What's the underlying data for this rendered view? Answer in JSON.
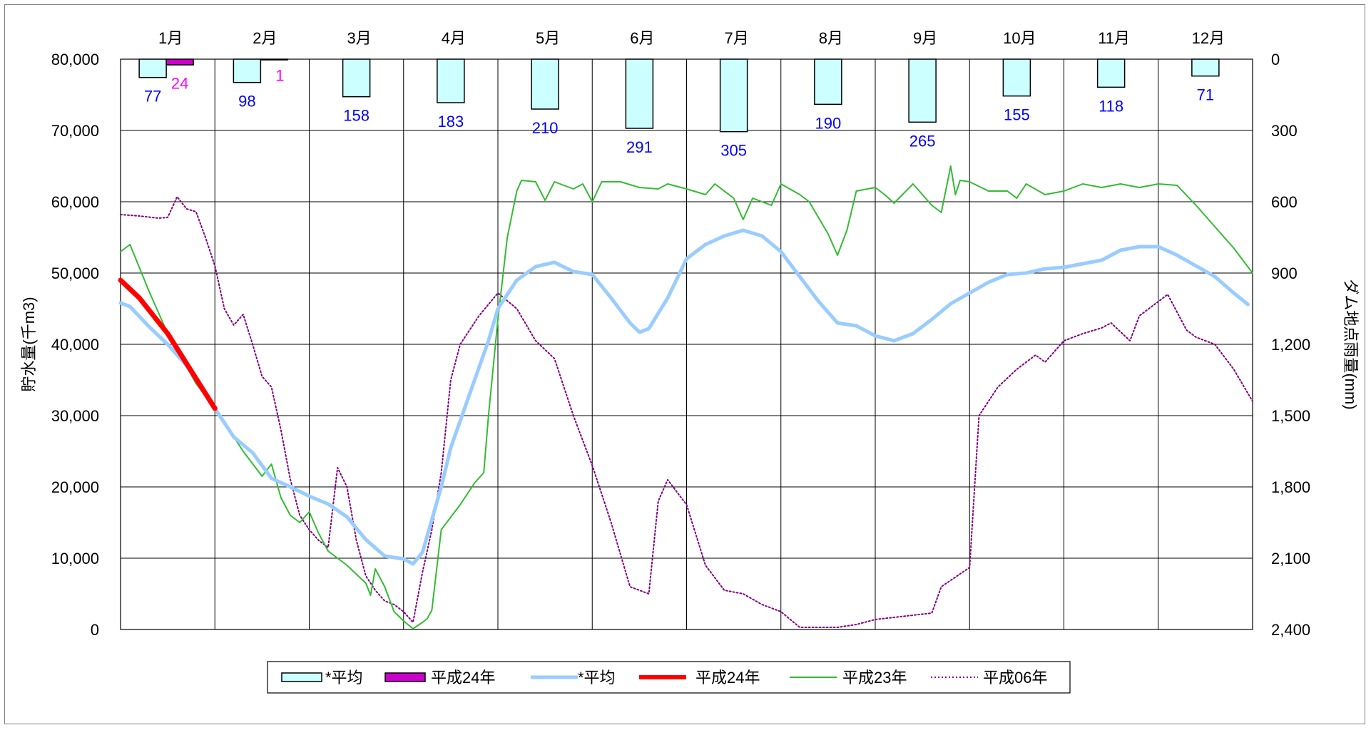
{
  "chart_data": {
    "type": "line",
    "title": "",
    "months": [
      "1月",
      "2月",
      "3月",
      "4月",
      "5月",
      "6月",
      "7月",
      "8月",
      "9月",
      "10月",
      "11月",
      "12月"
    ],
    "y_left": {
      "label": "貯水量(千m3)",
      "range": [
        0,
        80000
      ],
      "ticks": [
        "0",
        "10,000",
        "20,000",
        "30,000",
        "40,000",
        "50,000",
        "60,000",
        "70,000",
        "80,000"
      ]
    },
    "y_right": {
      "label": "ダム地点雨量(mm)",
      "range": [
        0,
        2400
      ],
      "inverted": true,
      "ticks": [
        "0",
        "300",
        "600",
        "900",
        "1,200",
        "1,500",
        "1,800",
        "2,100",
        "2,400"
      ]
    },
    "grid": true,
    "legend_position": "bottom",
    "bars": [
      {
        "name": "*平均",
        "color": "#ccffff",
        "values": [
          77,
          98,
          158,
          183,
          210,
          291,
          305,
          190,
          265,
          155,
          118,
          71
        ],
        "label_color": "#0000ff"
      },
      {
        "name": "平成24年",
        "color": "#cc00cc",
        "values": [
          24,
          1
        ],
        "label_color": "#ff00ff"
      }
    ],
    "lines": [
      {
        "name": "*平均",
        "color": "#99ccff",
        "style": "thick",
        "points": [
          [
            0,
            45800
          ],
          [
            0.1,
            45300
          ],
          [
            0.3,
            42500
          ],
          [
            0.5,
            40000
          ],
          [
            0.7,
            37000
          ],
          [
            1.0,
            31000
          ],
          [
            1.2,
            27000
          ],
          [
            1.4,
            24800
          ],
          [
            1.6,
            21200
          ],
          [
            1.8,
            20000
          ],
          [
            2.0,
            18700
          ],
          [
            2.2,
            17600
          ],
          [
            2.4,
            15800
          ],
          [
            2.6,
            12600
          ],
          [
            2.8,
            10300
          ],
          [
            3.0,
            9900
          ],
          [
            3.1,
            9200
          ],
          [
            3.2,
            10800
          ],
          [
            3.4,
            20000
          ],
          [
            3.5,
            25500
          ],
          [
            3.7,
            33000
          ],
          [
            3.9,
            40500
          ],
          [
            4.0,
            45000
          ],
          [
            4.2,
            49000
          ],
          [
            4.4,
            50900
          ],
          [
            4.6,
            51500
          ],
          [
            4.8,
            50200
          ],
          [
            5.0,
            49800
          ],
          [
            5.2,
            46500
          ],
          [
            5.4,
            43000
          ],
          [
            5.5,
            41700
          ],
          [
            5.6,
            42200
          ],
          [
            5.8,
            46500
          ],
          [
            6.0,
            52000
          ],
          [
            6.2,
            54000
          ],
          [
            6.4,
            55200
          ],
          [
            6.6,
            56000
          ],
          [
            6.8,
            55200
          ],
          [
            7.0,
            53000
          ],
          [
            7.2,
            49500
          ],
          [
            7.4,
            46000
          ],
          [
            7.6,
            43000
          ],
          [
            7.8,
            42600
          ],
          [
            8.0,
            41200
          ],
          [
            8.2,
            40500
          ],
          [
            8.4,
            41500
          ],
          [
            8.6,
            43500
          ],
          [
            8.8,
            45700
          ],
          [
            9.0,
            47200
          ],
          [
            9.2,
            48700
          ],
          [
            9.4,
            49800
          ],
          [
            9.6,
            50000
          ],
          [
            9.8,
            50600
          ],
          [
            10.0,
            50800
          ],
          [
            10.2,
            51300
          ],
          [
            10.4,
            51800
          ],
          [
            10.6,
            53200
          ],
          [
            10.8,
            53700
          ],
          [
            11.0,
            53700
          ],
          [
            11.2,
            52500
          ],
          [
            11.4,
            51000
          ],
          [
            11.6,
            49500
          ],
          [
            11.8,
            47200
          ],
          [
            11.95,
            45600
          ]
        ]
      },
      {
        "name": "平成24年",
        "color": "#ff0000",
        "style": "thicker",
        "points": [
          [
            0,
            49000
          ],
          [
            0.2,
            46500
          ],
          [
            0.5,
            41500
          ],
          [
            0.8,
            35200
          ],
          [
            1.0,
            31000
          ]
        ]
      },
      {
        "name": "平成23年",
        "color": "#33bb33",
        "style": "solid",
        "points": [
          [
            0,
            53000
          ],
          [
            0.1,
            54000
          ],
          [
            0.3,
            47500
          ],
          [
            0.5,
            41500
          ],
          [
            0.8,
            34500
          ],
          [
            1.0,
            31000
          ],
          [
            1.3,
            25000
          ],
          [
            1.5,
            21500
          ],
          [
            1.6,
            23200
          ],
          [
            1.7,
            18500
          ],
          [
            1.8,
            16000
          ],
          [
            1.9,
            15000
          ],
          [
            2.0,
            16500
          ],
          [
            2.1,
            13500
          ],
          [
            2.2,
            11000
          ],
          [
            2.4,
            9000
          ],
          [
            2.6,
            6500
          ],
          [
            2.65,
            4800
          ],
          [
            2.7,
            8500
          ],
          [
            2.8,
            6000
          ],
          [
            2.9,
            2500
          ],
          [
            3.0,
            1200
          ],
          [
            3.1,
            100
          ],
          [
            3.2,
            1000
          ],
          [
            3.25,
            1500
          ],
          [
            3.3,
            2700
          ],
          [
            3.4,
            14000
          ],
          [
            3.6,
            17500
          ],
          [
            3.75,
            20500
          ],
          [
            3.85,
            22000
          ],
          [
            3.9,
            30000
          ],
          [
            4.0,
            43500
          ],
          [
            4.1,
            55000
          ],
          [
            4.2,
            61500
          ],
          [
            4.25,
            63000
          ],
          [
            4.4,
            62800
          ],
          [
            4.5,
            60200
          ],
          [
            4.6,
            62800
          ],
          [
            4.8,
            61800
          ],
          [
            4.9,
            62500
          ],
          [
            5.0,
            60000
          ],
          [
            5.1,
            62800
          ],
          [
            5.3,
            62800
          ],
          [
            5.5,
            62000
          ],
          [
            5.7,
            61800
          ],
          [
            5.8,
            62500
          ],
          [
            6.0,
            61800
          ],
          [
            6.2,
            61000
          ],
          [
            6.3,
            62500
          ],
          [
            6.5,
            60500
          ],
          [
            6.6,
            57500
          ],
          [
            6.7,
            60500
          ],
          [
            6.9,
            59500
          ],
          [
            7.0,
            62500
          ],
          [
            7.2,
            61000
          ],
          [
            7.3,
            60000
          ],
          [
            7.5,
            55500
          ],
          [
            7.6,
            52500
          ],
          [
            7.7,
            56000
          ],
          [
            7.8,
            61500
          ],
          [
            8.0,
            62000
          ],
          [
            8.1,
            61000
          ],
          [
            8.2,
            59800
          ],
          [
            8.4,
            62500
          ],
          [
            8.6,
            59500
          ],
          [
            8.7,
            58500
          ],
          [
            8.8,
            65000
          ],
          [
            8.85,
            61000
          ],
          [
            8.9,
            63000
          ],
          [
            9.0,
            62800
          ],
          [
            9.2,
            61500
          ],
          [
            9.4,
            61500
          ],
          [
            9.5,
            60500
          ],
          [
            9.6,
            62500
          ],
          [
            9.8,
            61000
          ],
          [
            10.0,
            61500
          ],
          [
            10.2,
            62500
          ],
          [
            10.4,
            62000
          ],
          [
            10.6,
            62500
          ],
          [
            10.8,
            62000
          ],
          [
            11.0,
            62500
          ],
          [
            11.2,
            62300
          ],
          [
            11.4,
            59500
          ],
          [
            11.6,
            56500
          ],
          [
            11.8,
            53500
          ],
          [
            12.0,
            50000
          ]
        ]
      },
      {
        "name": "平成06年",
        "color": "#800080",
        "style": "dotted",
        "points": [
          [
            0,
            58200
          ],
          [
            0.2,
            58000
          ],
          [
            0.4,
            57700
          ],
          [
            0.5,
            57800
          ],
          [
            0.6,
            60700
          ],
          [
            0.7,
            59000
          ],
          [
            0.8,
            58600
          ],
          [
            0.9,
            55000
          ],
          [
            1.0,
            51000
          ],
          [
            1.1,
            45000
          ],
          [
            1.2,
            42700
          ],
          [
            1.3,
            44200
          ],
          [
            1.4,
            40000
          ],
          [
            1.5,
            35500
          ],
          [
            1.6,
            34000
          ],
          [
            1.7,
            28000
          ],
          [
            1.8,
            21000
          ],
          [
            1.9,
            16000
          ],
          [
            2.0,
            14000
          ],
          [
            2.1,
            12500
          ],
          [
            2.2,
            11500
          ],
          [
            2.3,
            22700
          ],
          [
            2.4,
            20000
          ],
          [
            2.5,
            12500
          ],
          [
            2.6,
            7500
          ],
          [
            2.7,
            5500
          ],
          [
            2.8,
            4000
          ],
          [
            2.9,
            3500
          ],
          [
            3.0,
            2500
          ],
          [
            3.1,
            1000
          ],
          [
            3.2,
            8000
          ],
          [
            3.3,
            14000
          ],
          [
            3.4,
            22000
          ],
          [
            3.5,
            35000
          ],
          [
            3.6,
            40000
          ],
          [
            3.8,
            44000
          ],
          [
            4.0,
            47200
          ],
          [
            4.2,
            45000
          ],
          [
            4.4,
            40500
          ],
          [
            4.6,
            38000
          ],
          [
            4.8,
            30000
          ],
          [
            5.0,
            23000
          ],
          [
            5.2,
            15000
          ],
          [
            5.4,
            6000
          ],
          [
            5.5,
            5500
          ],
          [
            5.6,
            5000
          ],
          [
            5.7,
            18000
          ],
          [
            5.8,
            21000
          ],
          [
            6.0,
            17500
          ],
          [
            6.2,
            9000
          ],
          [
            6.4,
            5500
          ],
          [
            6.6,
            5000
          ],
          [
            6.8,
            3500
          ],
          [
            7.0,
            2500
          ],
          [
            7.2,
            300
          ],
          [
            7.4,
            300
          ],
          [
            7.6,
            300
          ],
          [
            7.8,
            700
          ],
          [
            8.0,
            1400
          ],
          [
            8.2,
            1700
          ],
          [
            8.4,
            2000
          ],
          [
            8.6,
            2300
          ],
          [
            8.7,
            6000
          ],
          [
            9.0,
            8700
          ],
          [
            9.1,
            30000
          ],
          [
            9.3,
            34000
          ],
          [
            9.5,
            36500
          ],
          [
            9.7,
            38500
          ],
          [
            9.8,
            37500
          ],
          [
            10.0,
            40500
          ],
          [
            10.2,
            41500
          ],
          [
            10.4,
            42300
          ],
          [
            10.5,
            43000
          ],
          [
            10.7,
            40500
          ],
          [
            10.8,
            44000
          ],
          [
            11.0,
            46000
          ],
          [
            11.1,
            47000
          ],
          [
            11.3,
            42000
          ],
          [
            11.4,
            41000
          ],
          [
            11.6,
            40000
          ],
          [
            11.8,
            36500
          ],
          [
            12.0,
            32000
          ]
        ]
      }
    ],
    "legend": [
      {
        "name": "*平均",
        "kind": "bar",
        "color": "#ccffff"
      },
      {
        "name": "平成24年",
        "kind": "bar",
        "color": "#cc00cc"
      },
      {
        "name": "*平均",
        "kind": "line",
        "color": "#99ccff"
      },
      {
        "name": "平成24年",
        "kind": "line",
        "color": "#ff0000"
      },
      {
        "name": "平成23年",
        "kind": "line",
        "color": "#33bb33"
      },
      {
        "name": "平成06年",
        "kind": "dotted",
        "color": "#800080"
      }
    ]
  }
}
